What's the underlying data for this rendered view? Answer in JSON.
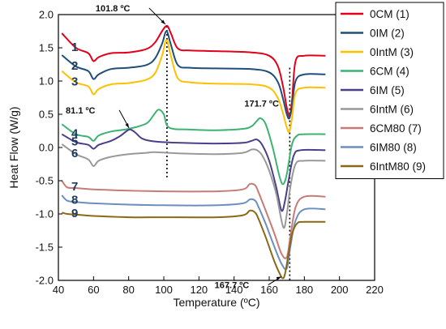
{
  "chart_data": {
    "type": "line",
    "xlabel": "Temperature (ºC)",
    "ylabel": "Heat Flow (W/g)",
    "xlim": [
      40,
      220
    ],
    "ylim": [
      -2.0,
      2.0
    ],
    "x_ticks": [
      "40",
      "60",
      "80",
      "100",
      "120",
      "140",
      "160",
      "180",
      "200",
      "220"
    ],
    "y_ticks": [
      "-2.0",
      "-1.5",
      "-1.0",
      "-0.5",
      "0.0",
      "0.5",
      "1.0",
      "1.5",
      "2.0"
    ],
    "grid": false,
    "legend_position": "top-right",
    "series": [
      {
        "name": "0CM (1)",
        "label": "1",
        "color": "#e3001b",
        "x": [
          42,
          50,
          57,
          60,
          63,
          70,
          80,
          90,
          95,
          99,
          101.8,
          104,
          108,
          115,
          130,
          150,
          160,
          165,
          168,
          170,
          171.7,
          173,
          175,
          180,
          192
        ],
        "y": [
          1.72,
          1.5,
          1.42,
          1.3,
          1.36,
          1.42,
          1.43,
          1.48,
          1.58,
          1.75,
          1.83,
          1.72,
          1.49,
          1.46,
          1.45,
          1.43,
          1.38,
          1.22,
          0.9,
          0.6,
          0.47,
          0.72,
          1.3,
          1.38,
          1.38
        ]
      },
      {
        "name": "0IM (2)",
        "label": "2",
        "color": "#1f4e79",
        "x": [
          42,
          50,
          57,
          60,
          63,
          70,
          80,
          90,
          95,
          99,
          101.5,
          104,
          108,
          115,
          130,
          150,
          160,
          165,
          168,
          170,
          171.5,
          173,
          175,
          180,
          192
        ],
        "y": [
          1.39,
          1.22,
          1.15,
          1.03,
          1.1,
          1.18,
          1.2,
          1.24,
          1.34,
          1.56,
          1.75,
          1.55,
          1.24,
          1.2,
          1.19,
          1.18,
          1.13,
          0.98,
          0.72,
          0.5,
          0.44,
          0.62,
          1.0,
          1.1,
          1.1
        ]
      },
      {
        "name": "0IntM (3)",
        "label": "3",
        "color": "#ffc000",
        "x": [
          42,
          50,
          57,
          60,
          63,
          70,
          80,
          90,
          95,
          99,
          101.5,
          104,
          108,
          115,
          130,
          150,
          160,
          165,
          168,
          170,
          171.5,
          173,
          175,
          180,
          192
        ],
        "y": [
          1.15,
          0.98,
          0.92,
          0.8,
          0.88,
          0.95,
          0.97,
          1.02,
          1.12,
          1.38,
          1.62,
          1.38,
          1.04,
          0.98,
          0.96,
          0.95,
          0.9,
          0.74,
          0.5,
          0.3,
          0.24,
          0.45,
          0.82,
          0.9,
          0.9
        ]
      },
      {
        "name": "6CM (4)",
        "label": "4",
        "color": "#3cb371",
        "x": [
          42,
          50,
          57,
          60,
          63,
          70,
          80,
          90,
          94,
          97,
          100,
          103,
          115,
          130,
          145,
          150,
          153,
          155,
          158,
          162,
          166,
          168,
          170,
          173,
          176,
          180,
          192
        ],
        "y": [
          0.35,
          0.2,
          0.16,
          0.1,
          0.18,
          0.24,
          0.28,
          0.36,
          0.48,
          0.57,
          0.5,
          0.3,
          0.27,
          0.26,
          0.28,
          0.32,
          0.4,
          0.44,
          0.35,
          0.0,
          -0.45,
          -0.55,
          -0.4,
          0.05,
          0.18,
          0.2,
          0.2
        ]
      },
      {
        "name": "6IM (5)",
        "label": "5",
        "color": "#4b3f8c",
        "x": [
          42,
          50,
          57,
          60,
          63,
          70,
          75,
          79,
          81.1,
          84,
          88,
          95,
          110,
          130,
          145,
          150,
          153,
          156,
          160,
          164,
          167,
          169,
          171,
          174,
          178,
          192
        ],
        "y": [
          0.2,
          0.08,
          0.04,
          -0.02,
          0.04,
          0.1,
          0.17,
          0.25,
          0.27,
          0.22,
          0.13,
          0.09,
          0.07,
          0.06,
          0.07,
          0.1,
          0.12,
          0.04,
          -0.2,
          -0.6,
          -0.95,
          -0.8,
          -0.5,
          -0.12,
          -0.04,
          -0.04
        ]
      },
      {
        "name": "6IntM (6)",
        "label": "6",
        "color": "#999999",
        "x": [
          42,
          50,
          57,
          60,
          63,
          70,
          80,
          90,
          95,
          110,
          130,
          145,
          150,
          153,
          156,
          160,
          164,
          168,
          170,
          172,
          175,
          180,
          192
        ],
        "y": [
          0.05,
          -0.1,
          -0.18,
          -0.28,
          -0.2,
          -0.14,
          -0.1,
          -0.08,
          -0.07,
          -0.09,
          -0.1,
          -0.08,
          -0.03,
          -0.04,
          -0.12,
          -0.35,
          -0.7,
          -1.2,
          -1.0,
          -0.6,
          -0.25,
          -0.2,
          -0.2
        ]
      },
      {
        "name": "6CM80 (7)",
        "label": "7",
        "color": "#c77b76",
        "x": [
          42,
          45,
          50,
          60,
          80,
          100,
          130,
          145,
          149,
          152,
          154,
          158,
          163,
          167,
          170,
          172,
          175,
          180,
          192
        ],
        "y": [
          -0.5,
          -0.6,
          -0.61,
          -0.63,
          -0.65,
          -0.66,
          -0.66,
          -0.63,
          -0.55,
          -0.57,
          -0.68,
          -0.95,
          -1.3,
          -1.6,
          -1.65,
          -1.35,
          -0.9,
          -0.74,
          -0.74
        ]
      },
      {
        "name": "6IM80 (8)",
        "label": "8",
        "color": "#6b8fbf",
        "x": [
          42,
          45,
          50,
          60,
          80,
          100,
          130,
          145,
          149,
          152,
          154,
          158,
          163,
          167,
          170,
          172,
          175,
          180,
          192
        ],
        "y": [
          -0.72,
          -0.8,
          -0.82,
          -0.84,
          -0.86,
          -0.87,
          -0.87,
          -0.84,
          -0.78,
          -0.8,
          -0.9,
          -1.15,
          -1.5,
          -1.75,
          -1.82,
          -1.5,
          -1.1,
          -0.93,
          -0.93
        ]
      },
      {
        "name": "6IntM80 (9)",
        "label": "9",
        "color": "#8b6914",
        "x": [
          42,
          45,
          50,
          60,
          80,
          100,
          130,
          145,
          149,
          152,
          154,
          158,
          163,
          166,
          167.7,
          169,
          171,
          173,
          176,
          180,
          192
        ],
        "y": [
          -0.98,
          -1.0,
          -1.01,
          -1.03,
          -1.05,
          -1.05,
          -1.05,
          -1.02,
          -0.95,
          -0.98,
          -1.08,
          -1.35,
          -1.72,
          -1.9,
          -1.97,
          -1.9,
          -1.6,
          -1.3,
          -1.14,
          -1.12,
          -1.12
        ]
      }
    ],
    "annotations": [
      {
        "text": "101.8 ºC",
        "x": 101.8,
        "y": 1.83
      },
      {
        "text": "81.1 ºC",
        "x": 81.1,
        "y": 0.27
      },
      {
        "text": "171.7 ºC",
        "x": 171.7,
        "y": 0.47
      },
      {
        "text": "167.7 ºC",
        "x": 167.7,
        "y": -1.97
      }
    ],
    "reference_lines": [
      {
        "x": 101.8,
        "from_y": 1.83,
        "to_y": -0.45
      },
      {
        "x": 171.7,
        "from_y": 1.2,
        "to_y": -2.0
      }
    ]
  }
}
